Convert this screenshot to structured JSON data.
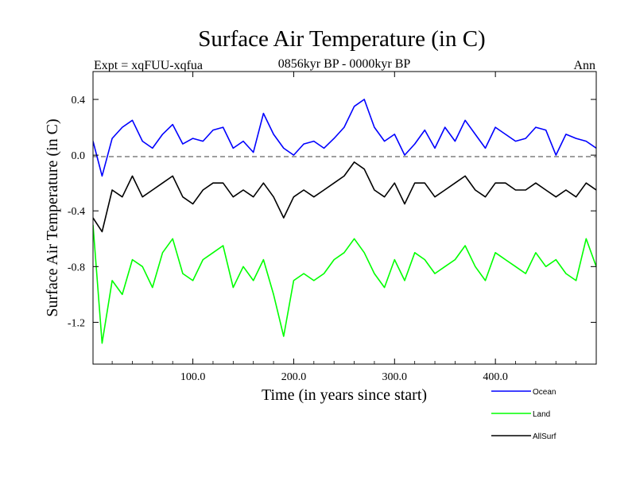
{
  "chart_data": {
    "type": "line",
    "title": "Surface Air Temperature (in C)",
    "subtitle_left": "Expt = xqFUU-xqfua",
    "subtitle_center": "0856kyr BP - 0000kyr BP",
    "subtitle_right": "Ann",
    "xlabel": "Time (in years since start)",
    "ylabel": "Surface Air Temperature (in C)",
    "xlim": [
      1,
      500
    ],
    "ylim": [
      -1.5,
      0.6
    ],
    "xticks": [
      100,
      200,
      300,
      400
    ],
    "xtick_labels": [
      "100.0",
      "200.0",
      "300.0",
      "400.0"
    ],
    "yticks": [
      0.4,
      0.0,
      -0.4,
      -0.8,
      -1.2
    ],
    "ytick_labels": [
      "0.4",
      "0.0",
      "-0.4",
      "-0.8",
      "-1.2"
    ],
    "zero_line": 0.0,
    "legend_position": "bottom-right",
    "series": [
      {
        "name": "Ocean",
        "color": "#0000ff",
        "x": [
          1,
          10,
          20,
          30,
          40,
          50,
          60,
          70,
          80,
          90,
          100,
          110,
          120,
          130,
          140,
          150,
          160,
          170,
          180,
          190,
          200,
          210,
          220,
          230,
          240,
          250,
          260,
          270,
          280,
          290,
          300,
          310,
          320,
          330,
          340,
          350,
          360,
          370,
          380,
          390,
          400,
          410,
          420,
          430,
          440,
          450,
          460,
          470,
          480,
          490,
          500
        ],
        "values": [
          0.1,
          -0.15,
          0.12,
          0.2,
          0.25,
          0.1,
          0.05,
          0.15,
          0.22,
          0.08,
          0.12,
          0.1,
          0.18,
          0.2,
          0.05,
          0.1,
          0.02,
          0.3,
          0.15,
          0.05,
          0.0,
          0.08,
          0.1,
          0.05,
          0.12,
          0.2,
          0.35,
          0.4,
          0.2,
          0.1,
          0.15,
          0.0,
          0.08,
          0.18,
          0.05,
          0.2,
          0.1,
          0.25,
          0.15,
          0.05,
          0.2,
          0.15,
          0.1,
          0.12,
          0.2,
          0.18,
          0.0,
          0.15,
          0.12,
          0.1,
          0.05
        ]
      },
      {
        "name": "Land",
        "color": "#00ff00",
        "x": [
          1,
          10,
          20,
          30,
          40,
          50,
          60,
          70,
          80,
          90,
          100,
          110,
          120,
          130,
          140,
          150,
          160,
          170,
          180,
          190,
          200,
          210,
          220,
          230,
          240,
          250,
          260,
          270,
          280,
          290,
          300,
          310,
          320,
          330,
          340,
          350,
          360,
          370,
          380,
          390,
          400,
          410,
          420,
          430,
          440,
          450,
          460,
          470,
          480,
          490,
          500
        ],
        "values": [
          -0.5,
          -1.35,
          -0.9,
          -1.0,
          -0.75,
          -0.8,
          -0.95,
          -0.7,
          -0.6,
          -0.85,
          -0.9,
          -0.75,
          -0.7,
          -0.65,
          -0.95,
          -0.8,
          -0.9,
          -0.75,
          -1.0,
          -1.3,
          -0.9,
          -0.85,
          -0.9,
          -0.85,
          -0.75,
          -0.7,
          -0.6,
          -0.7,
          -0.85,
          -0.95,
          -0.75,
          -0.9,
          -0.7,
          -0.75,
          -0.85,
          -0.8,
          -0.75,
          -0.65,
          -0.8,
          -0.9,
          -0.7,
          -0.75,
          -0.8,
          -0.85,
          -0.7,
          -0.8,
          -0.75,
          -0.85,
          -0.9,
          -0.6,
          -0.8
        ]
      },
      {
        "name": "AllSurf",
        "color": "#000000",
        "x": [
          1,
          10,
          20,
          30,
          40,
          50,
          60,
          70,
          80,
          90,
          100,
          110,
          120,
          130,
          140,
          150,
          160,
          170,
          180,
          190,
          200,
          210,
          220,
          230,
          240,
          250,
          260,
          270,
          280,
          290,
          300,
          310,
          320,
          330,
          340,
          350,
          360,
          370,
          380,
          390,
          400,
          410,
          420,
          430,
          440,
          450,
          460,
          470,
          480,
          490,
          500
        ],
        "values": [
          -0.45,
          -0.55,
          -0.25,
          -0.3,
          -0.15,
          -0.3,
          -0.25,
          -0.2,
          -0.15,
          -0.3,
          -0.35,
          -0.25,
          -0.2,
          -0.2,
          -0.3,
          -0.25,
          -0.3,
          -0.2,
          -0.3,
          -0.45,
          -0.3,
          -0.25,
          -0.3,
          -0.25,
          -0.2,
          -0.15,
          -0.05,
          -0.1,
          -0.25,
          -0.3,
          -0.2,
          -0.35,
          -0.2,
          -0.2,
          -0.3,
          -0.25,
          -0.2,
          -0.15,
          -0.25,
          -0.3,
          -0.2,
          -0.2,
          -0.25,
          -0.25,
          -0.2,
          -0.25,
          -0.3,
          -0.25,
          -0.3,
          -0.2,
          -0.25
        ]
      }
    ]
  }
}
